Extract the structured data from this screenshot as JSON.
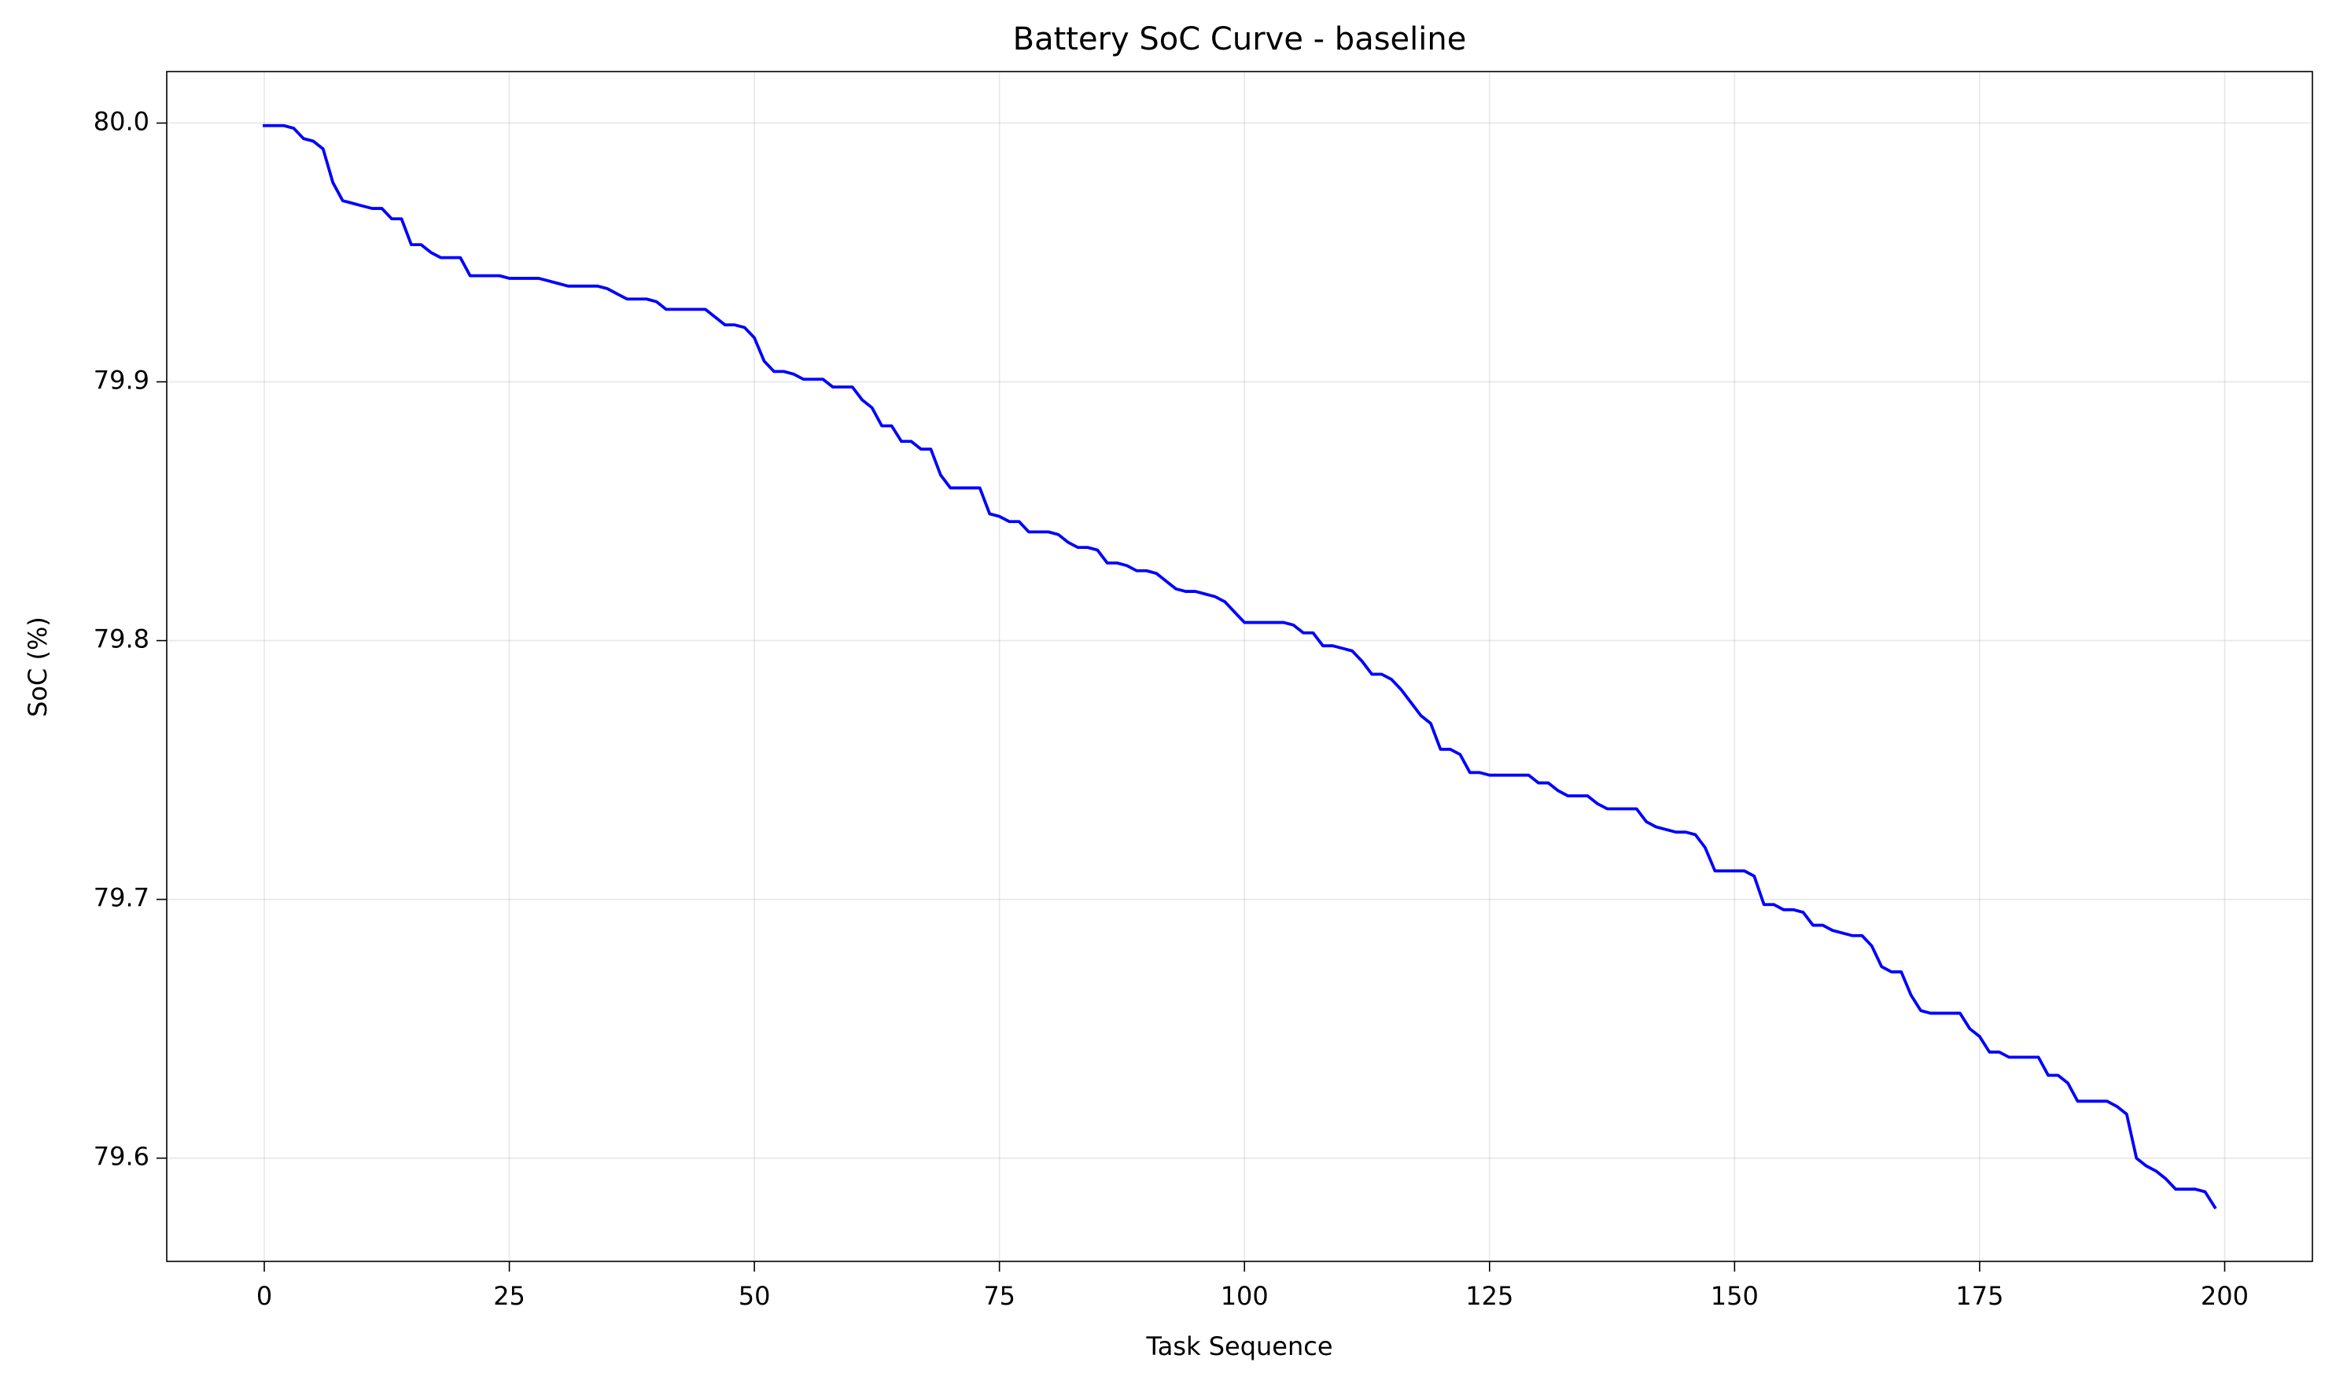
{
  "chart_data": {
    "type": "line",
    "title": "Battery SoC Curve - baseline",
    "xlabel": "Task Sequence",
    "ylabel": "SoC (%)",
    "color": "blue",
    "grid": true,
    "xlim": [
      -9.95,
      208.95
    ],
    "ylim": [
      79.5601,
      80.0199
    ],
    "xticks": [
      0,
      25,
      50,
      75,
      100,
      125,
      150,
      175,
      200
    ],
    "yticks": [
      79.6,
      79.7,
      79.8,
      79.9,
      {
        "value": 80,
        "label": "80.0"
      }
    ],
    "x": [
      0,
      1,
      2,
      3,
      4,
      5,
      6,
      7,
      8,
      9,
      10,
      11,
      12,
      13,
      14,
      15,
      16,
      17,
      18,
      19,
      20,
      21,
      22,
      23,
      24,
      25,
      26,
      27,
      28,
      29,
      30,
      31,
      32,
      33,
      34,
      35,
      36,
      37,
      38,
      39,
      40,
      41,
      42,
      43,
      44,
      45,
      46,
      47,
      48,
      49,
      50,
      51,
      52,
      53,
      54,
      55,
      56,
      57,
      58,
      59,
      60,
      61,
      62,
      63,
      64,
      65,
      66,
      67,
      68,
      69,
      70,
      71,
      72,
      73,
      74,
      75,
      76,
      77,
      78,
      79,
      80,
      81,
      82,
      83,
      84,
      85,
      86,
      87,
      88,
      89,
      90,
      91,
      92,
      93,
      94,
      95,
      96,
      97,
      98,
      99,
      100,
      101,
      102,
      103,
      104,
      105,
      106,
      107,
      108,
      109,
      110,
      111,
      112,
      113,
      114,
      115,
      116,
      117,
      118,
      119,
      120,
      121,
      122,
      123,
      124,
      125,
      126,
      127,
      128,
      129,
      130,
      131,
      132,
      133,
      134,
      135,
      136,
      137,
      138,
      139,
      140,
      141,
      142,
      143,
      144,
      145,
      146,
      147,
      148,
      149,
      150,
      151,
      152,
      153,
      154,
      155,
      156,
      157,
      158,
      159,
      160,
      161,
      162,
      163,
      164,
      165,
      166,
      167,
      168,
      169,
      170,
      171,
      172,
      173,
      174,
      175,
      176,
      177,
      178,
      179,
      180,
      181,
      182,
      183,
      184,
      185,
      186,
      187,
      188,
      189,
      190,
      191,
      192,
      193,
      194,
      195,
      196,
      197,
      198,
      199
    ],
    "values": [
      79.999,
      79.999,
      79.999,
      79.998,
      79.994,
      79.993,
      79.99,
      79.977,
      79.97,
      79.969,
      79.968,
      79.967,
      79.967,
      79.963,
      79.963,
      79.953,
      79.953,
      79.95,
      79.948,
      79.948,
      79.948,
      79.941,
      79.941,
      79.941,
      79.941,
      79.94,
      79.94,
      79.94,
      79.94,
      79.939,
      79.938,
      79.937,
      79.937,
      79.937,
      79.937,
      79.936,
      79.934,
      79.932,
      79.932,
      79.932,
      79.931,
      79.928,
      79.928,
      79.928,
      79.928,
      79.928,
      79.925,
      79.922,
      79.922,
      79.921,
      79.917,
      79.908,
      79.904,
      79.904,
      79.903,
      79.901,
      79.901,
      79.901,
      79.898,
      79.898,
      79.898,
      79.893,
      79.89,
      79.883,
      79.883,
      79.877,
      79.877,
      79.874,
      79.874,
      79.864,
      79.859,
      79.859,
      79.859,
      79.859,
      79.849,
      79.848,
      79.846,
      79.846,
      79.842,
      79.842,
      79.842,
      79.841,
      79.838,
      79.836,
      79.836,
      79.835,
      79.83,
      79.83,
      79.829,
      79.827,
      79.827,
      79.826,
      79.823,
      79.82,
      79.819,
      79.819,
      79.818,
      79.817,
      79.815,
      79.811,
      79.807,
      79.807,
      79.807,
      79.807,
      79.807,
      79.806,
      79.803,
      79.803,
      79.798,
      79.798,
      79.797,
      79.796,
      79.792,
      79.787,
      79.787,
      79.785,
      79.781,
      79.776,
      79.771,
      79.768,
      79.758,
      79.758,
      79.756,
      79.749,
      79.749,
      79.748,
      79.748,
      79.748,
      79.748,
      79.748,
      79.745,
      79.745,
      79.742,
      79.74,
      79.74,
      79.74,
      79.737,
      79.735,
      79.735,
      79.735,
      79.735,
      79.73,
      79.728,
      79.727,
      79.726,
      79.726,
      79.725,
      79.72,
      79.711,
      79.711,
      79.711,
      79.711,
      79.709,
      79.698,
      79.698,
      79.696,
      79.696,
      79.695,
      79.69,
      79.69,
      79.688,
      79.687,
      79.686,
      79.686,
      79.682,
      79.674,
      79.672,
      79.672,
      79.663,
      79.657,
      79.656,
      79.656,
      79.656,
      79.656,
      79.65,
      79.647,
      79.641,
      79.641,
      79.639,
      79.639,
      79.639,
      79.639,
      79.632,
      79.632,
      79.629,
      79.622,
      79.622,
      79.622,
      79.622,
      79.62,
      79.617,
      79.6,
      79.597,
      79.595,
      79.592,
      79.588,
      79.588,
      79.588,
      79.587,
      79.581
    ]
  }
}
